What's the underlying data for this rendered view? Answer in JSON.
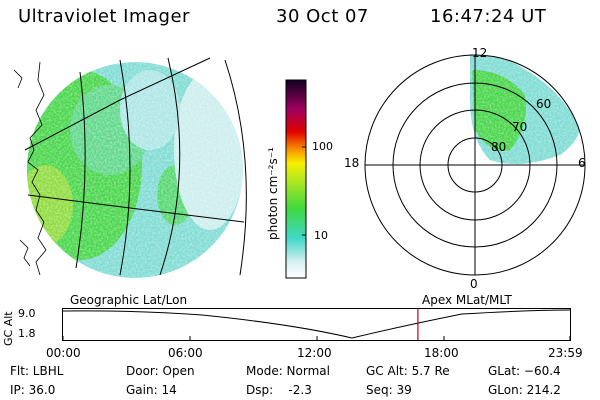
{
  "header": {
    "instrument": "Ultraviolet Imager",
    "date": "30 Oct 07",
    "time": "16:47:24 UT"
  },
  "colorbar": {
    "label": "photon cm⁻²s⁻¹",
    "ticks": [
      "100",
      "10"
    ]
  },
  "polar": {
    "mlt_labels": {
      "top": "12",
      "left": "18",
      "right": "6",
      "bottom": "0"
    },
    "lat_labels": [
      "60",
      "70",
      "80"
    ]
  },
  "timeline": {
    "left_title": "Geographic Lat/Lon",
    "right_title": "Apex MLat/MLT",
    "axis_label": "GC Alt",
    "y_ticks": [
      "9.0",
      "1.8"
    ],
    "x_ticks": [
      "00:00",
      "06:00",
      "12:00",
      "18:00",
      "23:59"
    ],
    "marker_time_hours": 16.79
  },
  "info": {
    "flt": "Flt: LBHL",
    "ip": "IP: 36.0",
    "door": "Door: Open",
    "gain": "Gain: 14",
    "mode": "Mode: Normal",
    "dsp": "Dsp:    -2.3",
    "gc_alt": "GC Alt: 5.7 Re",
    "seq": "Seq: 39",
    "glat": "GLat: −60.4",
    "glon": "GLon: 214.2"
  },
  "colors": {
    "aurora_green": "#3fd63c",
    "aurora_lime": "#8ee040",
    "aurora_cyan": "#6fd8d8",
    "aurora_pale": "#cfeeee",
    "marker_red": "#cc0000"
  }
}
